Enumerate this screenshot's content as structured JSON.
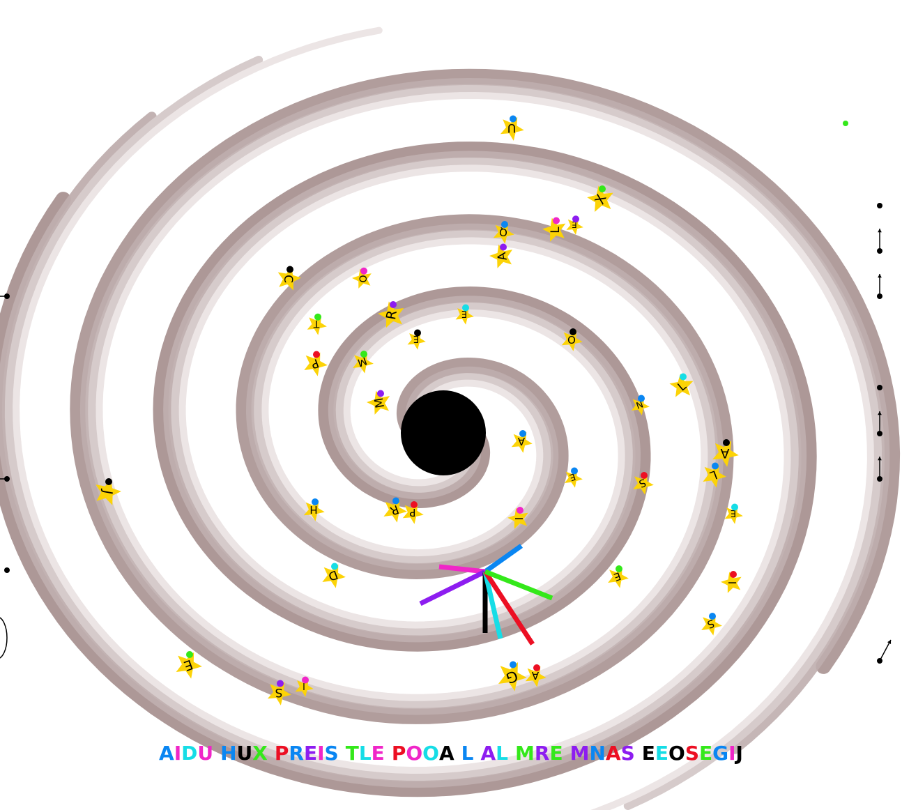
{
  "game": {
    "spiral_colors": [
      "#a99291",
      "#bfaeae",
      "#d6cbcb",
      "#ece5e5"
    ],
    "black_hole_color": "#000000",
    "star_color": "#fcd307",
    "dot_colors": {
      "blue": "#0a86f2",
      "black": "#000000",
      "purple": "#8d1df0",
      "magenta": "#f026c8",
      "green": "#34e81a",
      "cyan": "#16dde6",
      "red": "#ec0f23"
    },
    "stars": [
      {
        "letter": "U",
        "dot": "blue"
      },
      {
        "letter": "X",
        "dot": "green"
      },
      {
        "letter": "Q",
        "dot": "blue"
      },
      {
        "letter": "L",
        "dot": "magenta"
      },
      {
        "letter": "E",
        "dot": "purple"
      },
      {
        "letter": "A",
        "dot": "purple"
      },
      {
        "letter": "C",
        "dot": "black"
      },
      {
        "letter": "O",
        "dot": "magenta"
      },
      {
        "letter": "R",
        "dot": "purple"
      },
      {
        "letter": "E",
        "dot": "cyan"
      },
      {
        "letter": "T",
        "dot": "green"
      },
      {
        "letter": "E",
        "dot": "black"
      },
      {
        "letter": "O",
        "dot": "black"
      },
      {
        "letter": "P",
        "dot": "red"
      },
      {
        "letter": "M",
        "dot": "green"
      },
      {
        "letter": "L",
        "dot": "cyan"
      },
      {
        "letter": "M",
        "dot": "purple"
      },
      {
        "letter": "N",
        "dot": "blue"
      },
      {
        "letter": "A",
        "dot": "blue"
      },
      {
        "letter": "A",
        "dot": "black"
      },
      {
        "letter": "J",
        "dot": "black"
      },
      {
        "letter": "E",
        "dot": "blue"
      },
      {
        "letter": "S",
        "dot": "red"
      },
      {
        "letter": "L",
        "dot": "blue"
      },
      {
        "letter": "H",
        "dot": "blue"
      },
      {
        "letter": "R",
        "dot": "blue"
      },
      {
        "letter": "P",
        "dot": "red"
      },
      {
        "letter": "I",
        "dot": "magenta"
      },
      {
        "letter": "E",
        "dot": "cyan"
      },
      {
        "letter": "D",
        "dot": "cyan"
      },
      {
        "letter": "E",
        "dot": "green"
      },
      {
        "letter": "I",
        "dot": "red"
      },
      {
        "letter": "S",
        "dot": "blue"
      },
      {
        "letter": "E",
        "dot": "green"
      },
      {
        "letter": "G",
        "dot": "blue"
      },
      {
        "letter": "A",
        "dot": "red"
      },
      {
        "letter": "S",
        "dot": "purple"
      },
      {
        "letter": "I",
        "dot": "magenta"
      }
    ],
    "pointer_lines": [
      "blue",
      "magenta",
      "purple",
      "black",
      "cyan",
      "red",
      "green"
    ],
    "words": [
      {
        "text": "AIDU",
        "colors": [
          "blue",
          "magenta",
          "cyan",
          "magenta"
        ]
      },
      {
        "text": "HUX",
        "colors": [
          "blue",
          "black",
          "green"
        ]
      },
      {
        "text": "PREIS",
        "colors": [
          "red",
          "blue",
          "purple",
          "magenta",
          "blue"
        ]
      },
      {
        "text": "TLE",
        "colors": [
          "green",
          "cyan",
          "magenta"
        ]
      },
      {
        "text": "POOA",
        "colors": [
          "red",
          "magenta",
          "cyan",
          "black"
        ]
      },
      {
        "text": "L",
        "colors": [
          "blue"
        ]
      },
      {
        "text": "AL",
        "colors": [
          "purple",
          "cyan"
        ]
      },
      {
        "text": "MRE",
        "colors": [
          "green",
          "purple",
          "green"
        ]
      },
      {
        "text": "MNAS",
        "colors": [
          "purple",
          "blue",
          "red",
          "purple"
        ]
      },
      {
        "text": "EEOSEGIJ",
        "colors": [
          "black",
          "cyan",
          "black",
          "red",
          "green",
          "blue",
          "magenta",
          "black"
        ]
      }
    ]
  }
}
